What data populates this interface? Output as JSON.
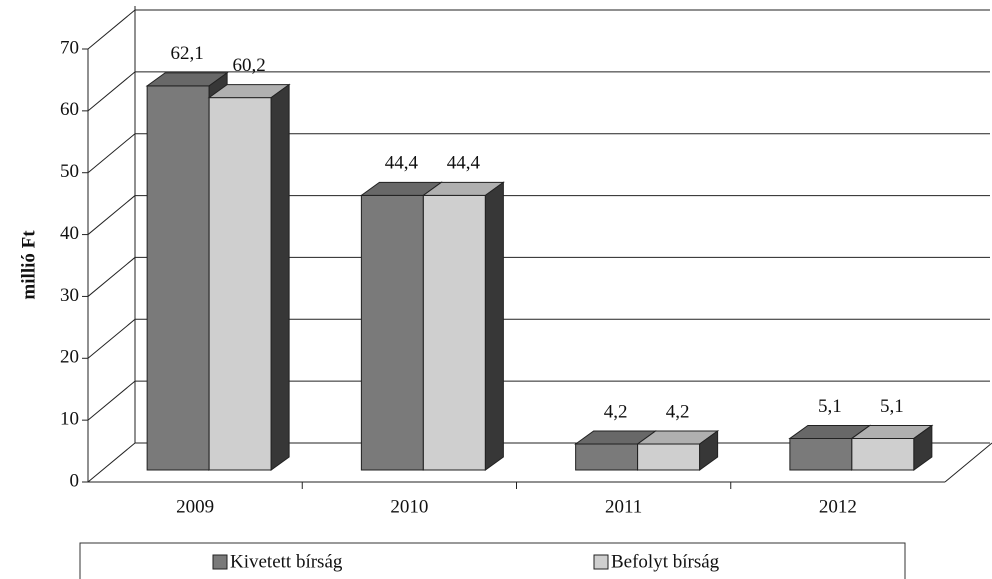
{
  "chart_data": {
    "type": "bar3d",
    "y_label": "millió Ft",
    "categories": [
      "2009",
      "2010",
      "2011",
      "2012"
    ],
    "series": [
      {
        "name": "Kivetett bírság",
        "color": "#7a7a7a",
        "values": [
          62.1,
          44.4,
          4.2,
          5.1
        ],
        "value_labels": [
          "62,1",
          "44,4",
          "4,2",
          "5,1"
        ]
      },
      {
        "name": "Befolyt bírság",
        "color": "#cfcfcf",
        "values": [
          60.2,
          44.4,
          4.2,
          5.1
        ],
        "value_labels": [
          "60,2",
          "44,4",
          "4,2",
          "5,1"
        ]
      }
    ],
    "ylim": [
      0,
      70
    ],
    "yticks": [
      0,
      10,
      20,
      30,
      40,
      50,
      60,
      70
    ],
    "grid": true,
    "legend": "bottom"
  }
}
